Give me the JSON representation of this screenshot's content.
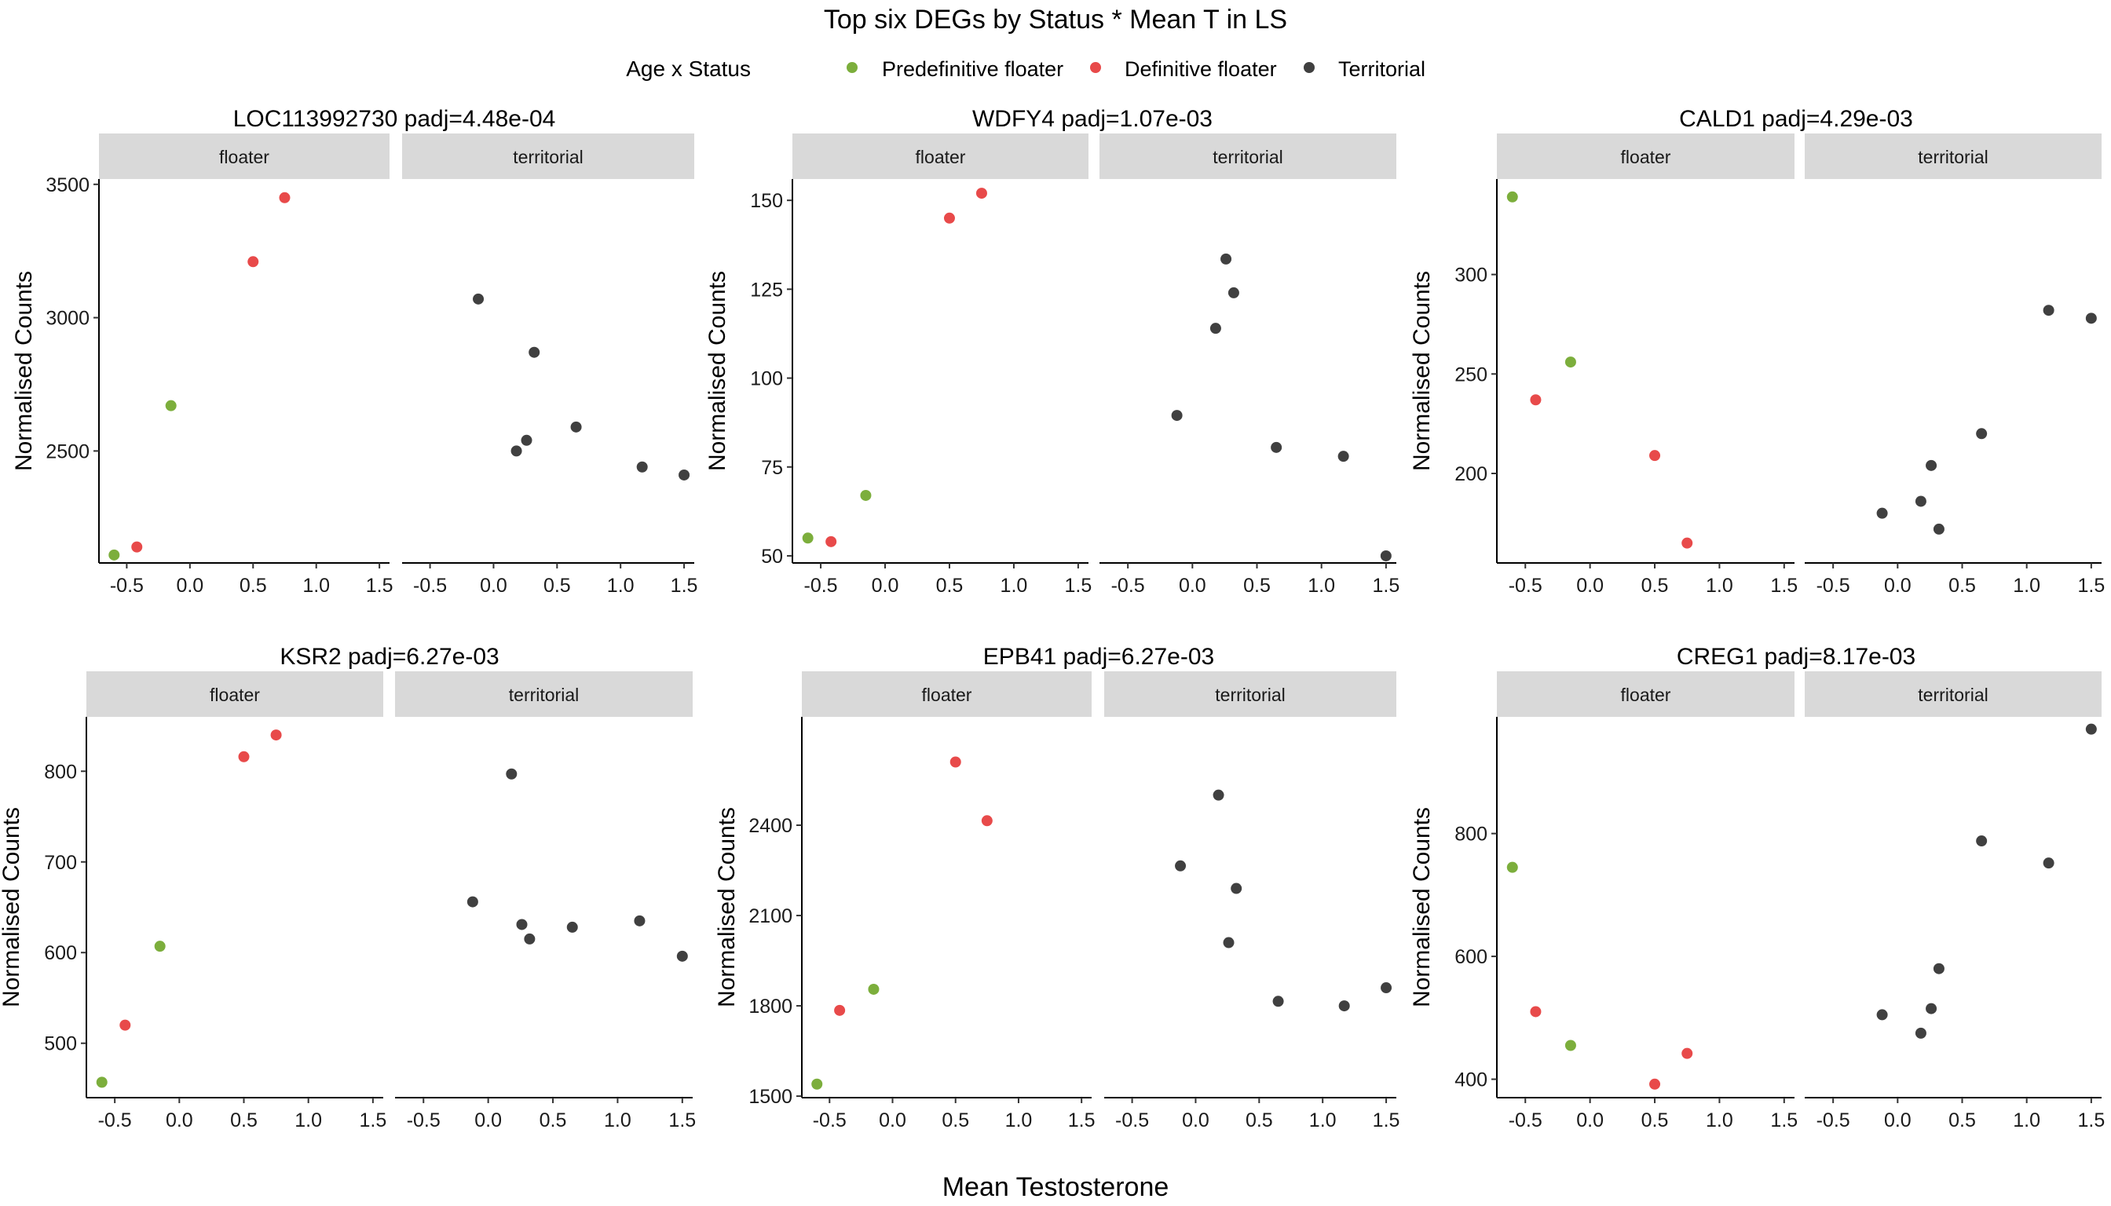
{
  "title": "Top six DEGs by Status * Mean T in LS",
  "legend": {
    "title": "Age x Status",
    "placement": "top",
    "items": [
      {
        "label": "Predefinitive floater",
        "color": "#7CAE3C"
      },
      {
        "label": "Definitive floater",
        "color": "#E84A4A"
      },
      {
        "label": "Territorial",
        "color": "#404040"
      }
    ]
  },
  "shared_xlabel": "Mean Testosterone",
  "shared_ylabel": "Normalised Counts",
  "facets": [
    "floater",
    "territorial"
  ],
  "chart_data": [
    {
      "type": "scatter",
      "title": "LOC113992730 padj=4.48e-04",
      "xlabel": "Mean Testosterone",
      "ylabel": "Normalised Counts",
      "xlim": [
        -0.72,
        1.58
      ],
      "ylim": [
        2080,
        3520
      ],
      "xticks": [
        -0.5,
        0.0,
        0.5,
        1.0,
        1.5
      ],
      "xtick_labels": [
        "-0.5",
        "0.0",
        "0.5",
        "1.0",
        "1.5"
      ],
      "yticks": [
        2500,
        3000,
        3500
      ],
      "ytick_labels": [
        "2500",
        "3000",
        "3500"
      ],
      "series": [
        {
          "name": "Predefinitive floater",
          "facet": "floater",
          "points": [
            [
              -0.6,
              2110
            ],
            [
              -0.15,
              2670
            ]
          ]
        },
        {
          "name": "Definitive floater",
          "facet": "floater",
          "points": [
            [
              -0.42,
              2140
            ],
            [
              0.5,
              3210
            ],
            [
              0.75,
              3450
            ]
          ]
        },
        {
          "name": "Territorial",
          "facet": "territorial",
          "points": [
            [
              -0.12,
              3070
            ],
            [
              0.18,
              2500
            ],
            [
              0.26,
              2540
            ],
            [
              0.32,
              2870
            ],
            [
              0.65,
              2590
            ],
            [
              1.17,
              2440
            ],
            [
              1.5,
              2410
            ]
          ]
        }
      ]
    },
    {
      "type": "scatter",
      "title": "WDFY4 padj=1.07e-03",
      "xlabel": "Mean Testosterone",
      "ylabel": "Normalised Counts",
      "xlim": [
        -0.72,
        1.58
      ],
      "ylim": [
        48,
        156
      ],
      "xticks": [
        -0.5,
        0.0,
        0.5,
        1.0,
        1.5
      ],
      "xtick_labels": [
        "-0.5",
        "0.0",
        "0.5",
        "1.0",
        "1.5"
      ],
      "yticks": [
        50,
        75,
        100,
        125,
        150
      ],
      "ytick_labels": [
        "50",
        "75",
        "100",
        "125",
        "150"
      ],
      "series": [
        {
          "name": "Predefinitive floater",
          "facet": "floater",
          "points": [
            [
              -0.6,
              55
            ],
            [
              -0.15,
              67
            ]
          ]
        },
        {
          "name": "Definitive floater",
          "facet": "floater",
          "points": [
            [
              -0.42,
              54
            ],
            [
              0.5,
              145
            ],
            [
              0.75,
              152
            ]
          ]
        },
        {
          "name": "Territorial",
          "facet": "territorial",
          "points": [
            [
              -0.12,
              89.5
            ],
            [
              0.18,
              114
            ],
            [
              0.26,
              133.5
            ],
            [
              0.32,
              124
            ],
            [
              0.65,
              80.5
            ],
            [
              1.17,
              78
            ],
            [
              1.5,
              50
            ]
          ]
        }
      ]
    },
    {
      "type": "scatter",
      "title": "CALD1 padj=4.29e-03",
      "xlabel": "Mean Testosterone",
      "ylabel": "Normalised Counts",
      "xlim": [
        -0.72,
        1.58
      ],
      "ylim": [
        155,
        348
      ],
      "xticks": [
        -0.5,
        0.0,
        0.5,
        1.0,
        1.5
      ],
      "xtick_labels": [
        "-0.5",
        "0.0",
        "0.5",
        "1.0",
        "1.5"
      ],
      "yticks": [
        200,
        250,
        300
      ],
      "ytick_labels": [
        "200",
        "250",
        "300"
      ],
      "series": [
        {
          "name": "Predefinitive floater",
          "facet": "floater",
          "points": [
            [
              -0.6,
              339
            ],
            [
              -0.15,
              256
            ]
          ]
        },
        {
          "name": "Definitive floater",
          "facet": "floater",
          "points": [
            [
              -0.42,
              237
            ],
            [
              0.5,
              209
            ],
            [
              0.75,
              165
            ]
          ]
        },
        {
          "name": "Territorial",
          "facet": "territorial",
          "points": [
            [
              -0.12,
              180
            ],
            [
              0.18,
              186
            ],
            [
              0.26,
              204
            ],
            [
              0.32,
              172
            ],
            [
              0.65,
              220
            ],
            [
              1.17,
              282
            ],
            [
              1.5,
              278
            ]
          ]
        }
      ]
    },
    {
      "type": "scatter",
      "title": "KSR2 padj=6.27e-03",
      "xlabel": "Mean Testosterone",
      "ylabel": "Normalised Counts",
      "xlim": [
        -0.72,
        1.58
      ],
      "ylim": [
        440,
        860
      ],
      "xticks": [
        -0.5,
        0.0,
        0.5,
        1.0,
        1.5
      ],
      "xtick_labels": [
        "-0.5",
        "0.0",
        "0.5",
        "1.0",
        "1.5"
      ],
      "yticks": [
        500,
        600,
        700,
        800
      ],
      "ytick_labels": [
        "500",
        "600",
        "700",
        "800"
      ],
      "series": [
        {
          "name": "Predefinitive floater",
          "facet": "floater",
          "points": [
            [
              -0.6,
              457
            ],
            [
              -0.15,
              607
            ]
          ]
        },
        {
          "name": "Definitive floater",
          "facet": "floater",
          "points": [
            [
              -0.42,
              520
            ],
            [
              0.5,
              816
            ],
            [
              0.75,
              840
            ]
          ]
        },
        {
          "name": "Territorial",
          "facet": "territorial",
          "points": [
            [
              -0.12,
              656
            ],
            [
              0.18,
              797
            ],
            [
              0.26,
              631
            ],
            [
              0.32,
              615
            ],
            [
              0.65,
              628
            ],
            [
              1.17,
              635
            ],
            [
              1.5,
              596
            ]
          ]
        }
      ]
    },
    {
      "type": "scatter",
      "title": "EPB41 padj=6.27e-03",
      "xlabel": "Mean Testosterone",
      "ylabel": "Normalised Counts",
      "xlim": [
        -0.72,
        1.58
      ],
      "ylim": [
        1495,
        2760
      ],
      "xticks": [
        -0.5,
        0.0,
        0.5,
        1.0,
        1.5
      ],
      "xtick_labels": [
        "-0.5",
        "0.0",
        "0.5",
        "1.0",
        "1.5"
      ],
      "yticks": [
        1500,
        1800,
        2100,
        2400
      ],
      "ytick_labels": [
        "1500",
        "1800",
        "2100",
        "2400"
      ],
      "series": [
        {
          "name": "Predefinitive floater",
          "facet": "floater",
          "points": [
            [
              -0.6,
              1540
            ],
            [
              -0.15,
              1855
            ]
          ]
        },
        {
          "name": "Definitive floater",
          "facet": "floater",
          "points": [
            [
              -0.42,
              1785
            ],
            [
              0.5,
              2610
            ],
            [
              0.75,
              2415
            ]
          ]
        },
        {
          "name": "Territorial",
          "facet": "territorial",
          "points": [
            [
              -0.12,
              2265
            ],
            [
              0.18,
              2500
            ],
            [
              0.26,
              2010
            ],
            [
              0.32,
              2190
            ],
            [
              0.65,
              1815
            ],
            [
              1.17,
              1800
            ],
            [
              1.5,
              1860
            ]
          ]
        }
      ]
    },
    {
      "type": "scatter",
      "title": "CREG1 padj=8.17e-03",
      "xlabel": "Mean Testosterone",
      "ylabel": "Normalised Counts",
      "xlim": [
        -0.72,
        1.58
      ],
      "ylim": [
        370,
        990
      ],
      "xticks": [
        -0.5,
        0.0,
        0.5,
        1.0,
        1.5
      ],
      "xtick_labels": [
        "-0.5",
        "0.0",
        "0.5",
        "1.0",
        "1.5"
      ],
      "yticks": [
        400,
        600,
        800
      ],
      "ytick_labels": [
        "400",
        "600",
        "800"
      ],
      "series": [
        {
          "name": "Predefinitive floater",
          "facet": "floater",
          "points": [
            [
              -0.6,
              745
            ],
            [
              -0.15,
              455
            ]
          ]
        },
        {
          "name": "Definitive floater",
          "facet": "floater",
          "points": [
            [
              -0.42,
              510
            ],
            [
              0.5,
              392
            ],
            [
              0.75,
              442
            ]
          ]
        },
        {
          "name": "Territorial",
          "facet": "territorial",
          "points": [
            [
              -0.12,
              505
            ],
            [
              0.18,
              475
            ],
            [
              0.26,
              515
            ],
            [
              0.32,
              580
            ],
            [
              0.65,
              788
            ],
            [
              1.17,
              752
            ],
            [
              1.5,
              970
            ]
          ]
        }
      ]
    }
  ]
}
